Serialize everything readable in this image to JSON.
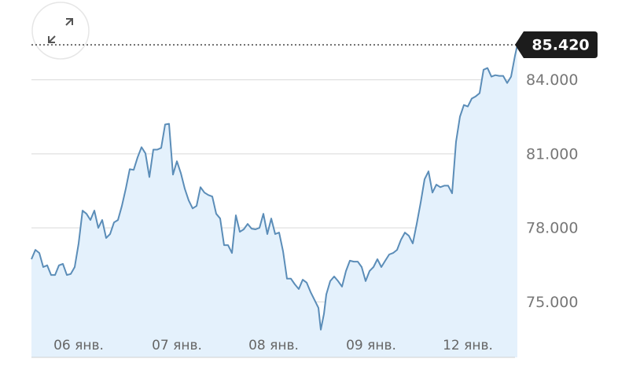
{
  "chart_data": {
    "type": "area",
    "x": [
      0,
      1,
      2,
      3,
      4,
      5,
      6,
      7,
      8,
      9,
      10,
      11,
      12,
      13,
      14,
      15,
      16,
      17,
      18,
      19,
      20,
      21,
      22,
      23,
      24,
      25,
      26,
      27,
      28,
      29,
      30,
      31,
      32,
      33,
      34,
      35,
      36,
      37,
      38,
      39,
      40,
      41,
      42,
      43,
      44,
      45,
      46,
      47,
      48,
      49,
      50,
      51,
      52,
      53,
      54,
      55,
      56,
      57,
      58,
      59,
      60,
      61,
      62,
      63,
      64,
      65,
      66,
      67,
      68,
      69,
      70,
      71,
      72,
      73,
      73.6,
      74.4,
      75,
      76,
      77,
      78,
      79,
      80,
      81,
      82,
      83,
      84,
      85,
      86,
      87,
      88,
      89,
      90,
      91,
      92,
      93,
      94,
      95,
      96,
      97,
      98,
      99,
      100,
      101,
      102,
      103,
      104,
      105,
      106,
      107,
      108,
      109,
      110,
      111,
      112,
      113,
      114,
      115,
      116,
      117,
      118,
      119,
      120,
      121,
      122,
      123,
      123.6
    ],
    "series": [
      {
        "color": "#5b8db8",
        "fill": "#e4f1fc",
        "values": [
          76.73,
          77.11,
          76.98,
          76.41,
          76.48,
          76.09,
          76.09,
          76.48,
          76.54,
          76.09,
          76.13,
          76.41,
          77.37,
          78.7,
          78.57,
          78.32,
          78.7,
          78.0,
          78.32,
          77.59,
          77.75,
          78.22,
          78.32,
          78.89,
          79.59,
          80.38,
          80.35,
          80.86,
          81.27,
          81.02,
          80.06,
          81.17,
          81.17,
          81.24,
          82.19,
          82.22,
          80.16,
          80.7,
          80.22,
          79.59,
          79.11,
          78.79,
          78.89,
          79.65,
          79.43,
          79.33,
          79.27,
          78.57,
          78.38,
          77.3,
          77.3,
          76.98,
          78.51,
          77.84,
          77.94,
          78.16,
          77.97,
          77.94,
          78.0,
          78.57,
          77.75,
          78.38,
          77.75,
          77.81,
          77.05,
          75.94,
          75.94,
          75.71,
          75.52,
          75.9,
          75.78,
          75.4,
          75.08,
          74.76,
          73.87,
          74.51,
          75.3,
          75.84,
          76.03,
          75.84,
          75.62,
          76.25,
          76.67,
          76.63,
          76.63,
          76.41,
          75.84,
          76.25,
          76.41,
          76.73,
          76.41,
          76.67,
          76.92,
          76.98,
          77.11,
          77.52,
          77.81,
          77.68,
          77.37,
          78.16,
          79.02,
          79.97,
          80.29,
          79.43,
          79.75,
          79.65,
          79.71,
          79.71,
          79.4,
          81.49,
          82.51,
          82.98,
          82.92,
          83.24,
          83.33,
          83.46,
          84.41,
          84.48,
          84.13,
          84.19,
          84.16,
          84.16,
          83.87,
          84.13,
          84.98,
          85.42
        ]
      }
    ],
    "xlim": [
      0,
      123.6
    ],
    "xticks": [
      {
        "value": 12,
        "label": "06 янв."
      },
      {
        "value": 37,
        "label": "07 янв."
      },
      {
        "value": 61.6,
        "label": "08 янв."
      },
      {
        "value": 86.4,
        "label": "09 янв."
      },
      {
        "value": 111,
        "label": "12 янв."
      }
    ],
    "ylim": [
      72.75,
      86.6
    ],
    "yticks": [
      {
        "value": 75,
        "label": "75.000"
      },
      {
        "value": 78,
        "label": "78.000"
      },
      {
        "value": 81,
        "label": "81.000"
      },
      {
        "value": 84,
        "label": "84.000"
      }
    ],
    "grid": true,
    "current": {
      "value": 85.42,
      "label": "85.420"
    }
  }
}
